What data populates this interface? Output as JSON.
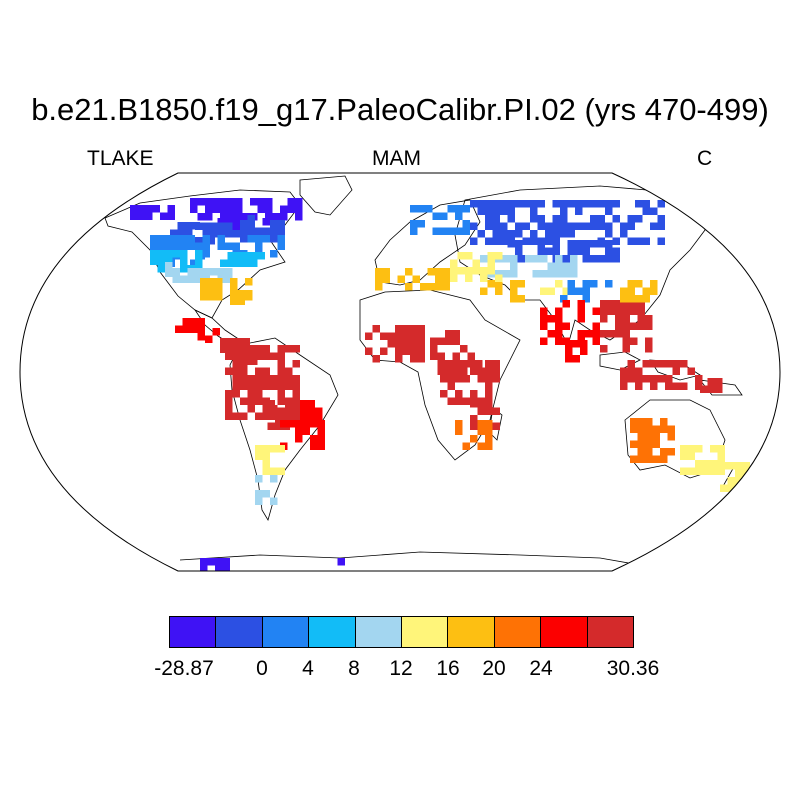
{
  "title": "b.e21.B1850.f19_g17.PaleoCalibr.PI.02 (yrs 470-499)",
  "subtitle_left": "TLAKE",
  "subtitle_center": "MAM",
  "subtitle_right": "C",
  "projection": "robinson",
  "colorbar": {
    "colors": [
      "#3f12f5",
      "#2c50e3",
      "#2283f3",
      "#12bcf7",
      "#a3d6f0",
      "#fff57a",
      "#fdbf12",
      "#fe7205",
      "#fc0000",
      "#d42a2b"
    ],
    "tick_labels": [
      "-28.87",
      "0",
      "4",
      "8",
      "12",
      "16",
      "20",
      "24",
      "30.36"
    ]
  },
  "regions": [
    {
      "name": "north-america-arctic",
      "band": 0
    },
    {
      "name": "hudson-bay-area",
      "band": 1
    },
    {
      "name": "canada-south",
      "band": 2
    },
    {
      "name": "northwest-us",
      "band": 3
    },
    {
      "name": "great-plains",
      "band": 4
    },
    {
      "name": "us-southeast",
      "band": 6
    },
    {
      "name": "mexico",
      "band": 8
    },
    {
      "name": "central-america",
      "band": 9
    },
    {
      "name": "amazon",
      "band": 9
    },
    {
      "name": "south-america-east",
      "band": 8
    },
    {
      "name": "south-america-south",
      "band": 5
    },
    {
      "name": "patagonia",
      "band": 4
    },
    {
      "name": "scandinavia",
      "band": 2
    },
    {
      "name": "siberia",
      "band": 1
    },
    {
      "name": "central-asia",
      "band": 4
    },
    {
      "name": "mediterranean",
      "band": 6
    },
    {
      "name": "black-sea-caspian",
      "band": 5
    },
    {
      "name": "tibet",
      "band": 2
    },
    {
      "name": "sahel",
      "band": 9
    },
    {
      "name": "east-africa",
      "band": 9
    },
    {
      "name": "southern-africa",
      "band": 7
    },
    {
      "name": "india",
      "band": 8
    },
    {
      "name": "southeast-asia",
      "band": 9
    },
    {
      "name": "east-china",
      "band": 6
    },
    {
      "name": "indonesia",
      "band": 9
    },
    {
      "name": "australia-west",
      "band": 7
    },
    {
      "name": "australia-southeast",
      "band": 5
    },
    {
      "name": "new-zealand",
      "band": 5
    },
    {
      "name": "antarctica",
      "band": 0
    }
  ]
}
